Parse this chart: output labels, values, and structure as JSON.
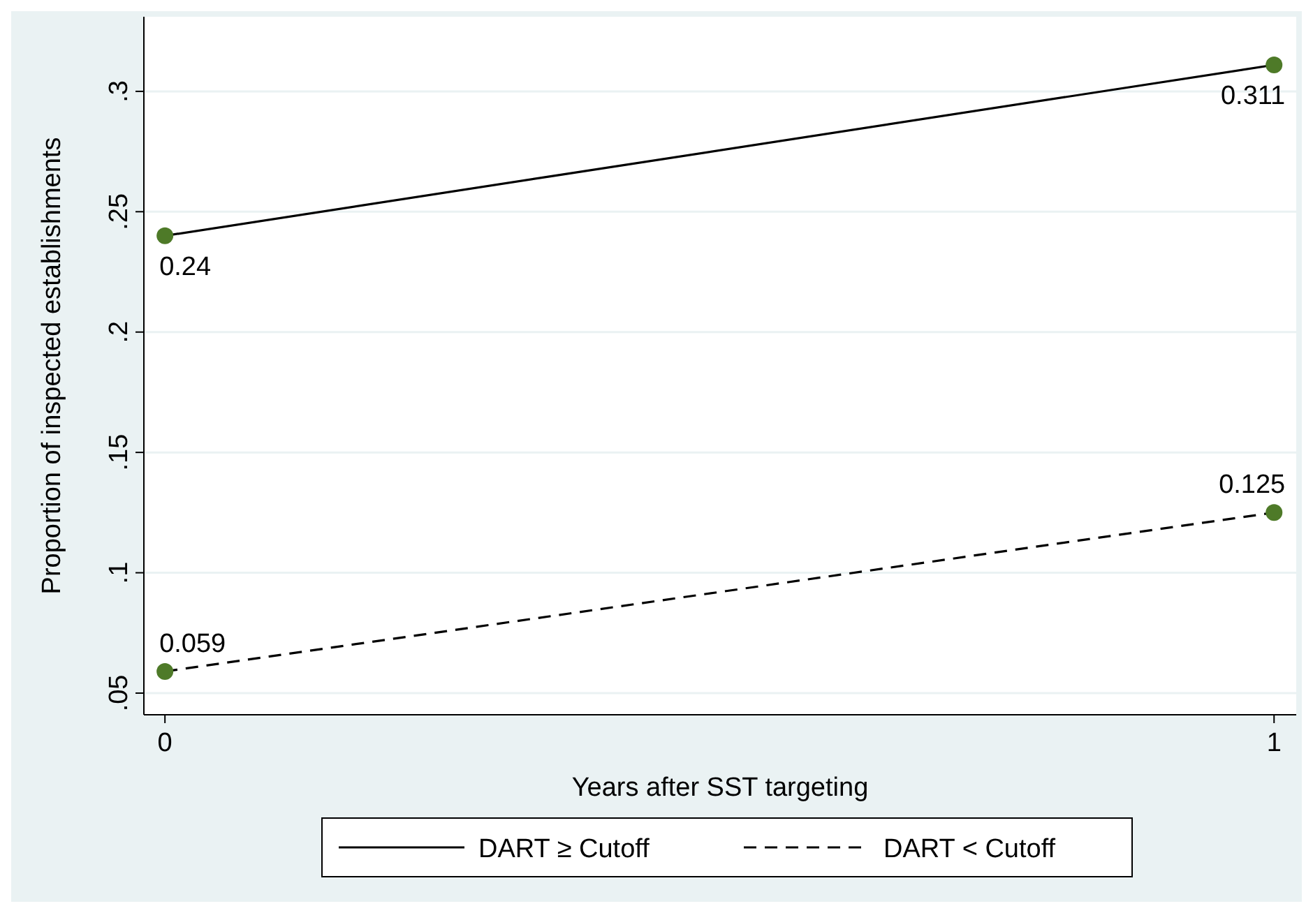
{
  "chart_data": {
    "type": "line",
    "xlabel": "Years after SST targeting",
    "ylabel": "Proportion of inspected establishments",
    "x": [
      0,
      1
    ],
    "series": [
      {
        "name": "DART ≥ Cutoff",
        "color": "#000000",
        "values": [
          0.24,
          0.311
        ],
        "line_style": "solid"
      },
      {
        "name": "DART < Cutoff",
        "color": "#000000",
        "values": [
          0.059,
          0.125
        ],
        "line_style": "dashed"
      }
    ],
    "xlim": [
      -0.019,
      1.02
    ],
    "xticks": [
      0,
      1
    ],
    "ylim": [
      0.041,
      0.331
    ],
    "yticks": [
      {
        "value": 0.05,
        "label": ".05"
      },
      {
        "value": 0.1,
        "label": ".1"
      },
      {
        "value": 0.15,
        "label": ".15"
      },
      {
        "value": 0.2,
        "label": ".2"
      },
      {
        "value": 0.25,
        "label": ".25"
      },
      {
        "value": 0.3,
        "label": ".3"
      }
    ],
    "grid": "y",
    "marker": "circle",
    "data_labels": true,
    "legend": "bottom"
  }
}
